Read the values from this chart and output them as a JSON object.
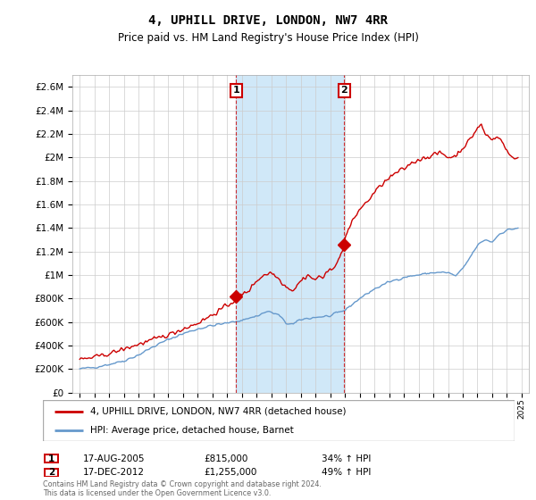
{
  "title": "4, UPHILL DRIVE, LONDON, NW7 4RR",
  "subtitle": "Price paid vs. HM Land Registry's House Price Index (HPI)",
  "ylim": [
    0,
    2700000
  ],
  "yticks": [
    0,
    200000,
    400000,
    600000,
    800000,
    1000000,
    1200000,
    1400000,
    1600000,
    1800000,
    2000000,
    2200000,
    2400000,
    2600000
  ],
  "ytick_labels": [
    "£0",
    "£200K",
    "£400K",
    "£600K",
    "£800K",
    "£1M",
    "£1.2M",
    "£1.4M",
    "£1.6M",
    "£1.8M",
    "£2M",
    "£2.2M",
    "£2.4M",
    "£2.6M"
  ],
  "xlim": [
    1994.5,
    2025.5
  ],
  "xtick_years": [
    1995,
    1996,
    1997,
    1998,
    1999,
    2000,
    2001,
    2002,
    2003,
    2004,
    2005,
    2006,
    2007,
    2008,
    2009,
    2010,
    2011,
    2012,
    2013,
    2014,
    2015,
    2016,
    2017,
    2018,
    2019,
    2020,
    2021,
    2022,
    2023,
    2024,
    2025
  ],
  "sale1_x": 2005.625,
  "sale1_y": 815000,
  "sale2_x": 2012.96,
  "sale2_y": 1255000,
  "red_line_color": "#cc0000",
  "blue_line_color": "#6699cc",
  "vline_color": "#cc0000",
  "highlight_color": "#d0e8f8",
  "grid_color": "#cccccc",
  "bg_color": "#ffffff",
  "legend_label_red": "4, UPHILL DRIVE, LONDON, NW7 4RR (detached house)",
  "legend_label_blue": "HPI: Average price, detached house, Barnet",
  "table_row1": [
    "1",
    "17-AUG-2005",
    "£815,000",
    "34% ↑ HPI"
  ],
  "table_row2": [
    "2",
    "17-DEC-2012",
    "£1,255,000",
    "49% ↑ HPI"
  ],
  "footer": "Contains HM Land Registry data © Crown copyright and database right 2024.\nThis data is licensed under the Open Government Licence v3.0."
}
